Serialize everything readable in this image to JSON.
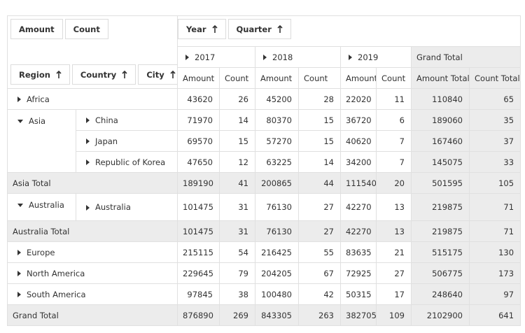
{
  "value_fields": [
    "Amount",
    "Count"
  ],
  "column_fields": [
    "Year",
    "Quarter"
  ],
  "row_fields": [
    "Region",
    "Country",
    "City"
  ],
  "years": [
    "2017",
    "2018",
    "2019"
  ],
  "grand_total_header": "Grand Total",
  "measures": [
    "Amount",
    "Count"
  ],
  "total_measures": [
    "Amount Total",
    "Count Total"
  ],
  "rows": [
    {
      "region": "Africa",
      "values": [
        43620,
        26,
        45200,
        28,
        22020,
        11,
        110840,
        65
      ]
    },
    {
      "region": "Asia",
      "expanded": true,
      "children": [
        {
          "country": "China",
          "values": [
            71970,
            14,
            80370,
            15,
            36720,
            6,
            189060,
            35
          ]
        },
        {
          "country": "Japan",
          "values": [
            69570,
            15,
            57270,
            15,
            40620,
            7,
            167460,
            37
          ]
        },
        {
          "country": "Republic of Korea",
          "values": [
            47650,
            12,
            63225,
            14,
            34200,
            7,
            145075,
            33
          ]
        }
      ]
    },
    {
      "total": "Asia Total",
      "values": [
        189190,
        41,
        200865,
        44,
        111540,
        20,
        501595,
        105
      ]
    },
    {
      "region": "Australia",
      "expanded": true,
      "children": [
        {
          "country": "Australia",
          "values": [
            101475,
            31,
            76130,
            27,
            42270,
            13,
            219875,
            71
          ]
        }
      ]
    },
    {
      "total": "Australia Total",
      "values": [
        101475,
        31,
        76130,
        27,
        42270,
        13,
        219875,
        71
      ]
    },
    {
      "region": "Europe",
      "values": [
        215115,
        54,
        216425,
        55,
        83635,
        21,
        515175,
        130
      ]
    },
    {
      "region": "North America",
      "values": [
        229645,
        79,
        204205,
        67,
        72925,
        27,
        506775,
        173
      ]
    },
    {
      "region": "South America",
      "values": [
        97845,
        38,
        100480,
        42,
        50315,
        17,
        248640,
        97
      ]
    },
    {
      "total": "Grand Total",
      "values": [
        876890,
        269,
        843305,
        263,
        382705,
        109,
        2102900,
        641
      ]
    }
  ]
}
